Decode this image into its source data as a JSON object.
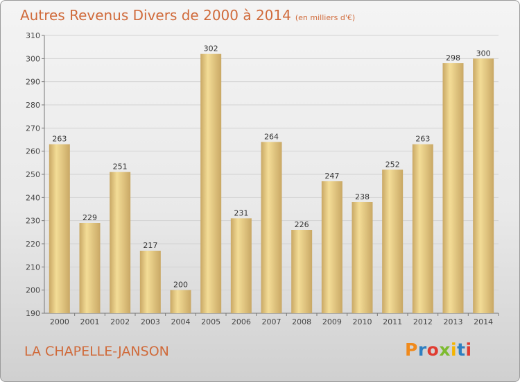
{
  "header": {
    "title": "Autres Revenus Divers de 2000 à 2014",
    "unit": "(en milliers d'€)"
  },
  "footer": {
    "commune": "LA CHAPELLE-JANSON",
    "logo": {
      "letters": [
        "P",
        "r",
        "o",
        "x",
        "i",
        "t",
        "i"
      ],
      "colors": [
        "#f08a1c",
        "#2e7fc1",
        "#e03c31",
        "#7dbb2f",
        "#f5b400",
        "#2e7fc1",
        "#e03c31"
      ]
    }
  },
  "chart_data": {
    "type": "bar",
    "title": "Autres Revenus Divers de 2000 à 2014",
    "categories": [
      "2000",
      "2001",
      "2002",
      "2003",
      "2004",
      "2005",
      "2006",
      "2007",
      "2008",
      "2009",
      "2010",
      "2011",
      "2012",
      "2013",
      "2014"
    ],
    "values": [
      263,
      229,
      251,
      217,
      200,
      302,
      231,
      264,
      226,
      247,
      238,
      252,
      263,
      298,
      300
    ],
    "ylim": [
      190,
      310
    ],
    "yticks": [
      190,
      200,
      210,
      220,
      230,
      240,
      250,
      260,
      270,
      280,
      290,
      300,
      310
    ],
    "grid": true,
    "bar_color_light": "#f3dc96",
    "bar_color_dark": "#c9a865"
  }
}
